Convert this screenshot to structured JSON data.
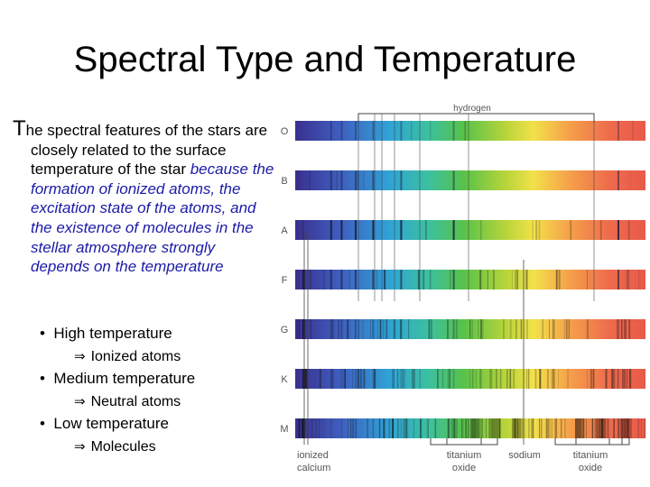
{
  "title": "Spectral Type and Temperature",
  "paragraph": {
    "lead_letter": "T",
    "plain": "he spectral features of the stars are closely related to the surface temperature of the star ",
    "italic": "because the formation of ionized atoms, the excitation state of the atoms, and the existence of molecules in the stellar atmosphere strongly depends on the temperature"
  },
  "bullets": [
    {
      "label": "High temperature",
      "sub": "Ionized atoms"
    },
    {
      "label": "Medium temperature",
      "sub": "Neutral atoms"
    },
    {
      "label": "Low temperature",
      "sub": "Molecules"
    }
  ],
  "bullet_symbol": "•",
  "sub_symbol": "⇒",
  "figure": {
    "spectral_types": [
      "O",
      "B",
      "A",
      "F",
      "G",
      "K",
      "M"
    ],
    "top_label": "hydrogen",
    "bottom_labels": {
      "ionized_calcium": [
        "ionized",
        "calcium"
      ],
      "titanium_oxide_1": [
        "titanium",
        "oxide"
      ],
      "sodium": "sodium",
      "titanium_oxide_2": [
        "titanium",
        "oxide"
      ]
    },
    "label_color": "#555555",
    "line_color": "#444444"
  }
}
